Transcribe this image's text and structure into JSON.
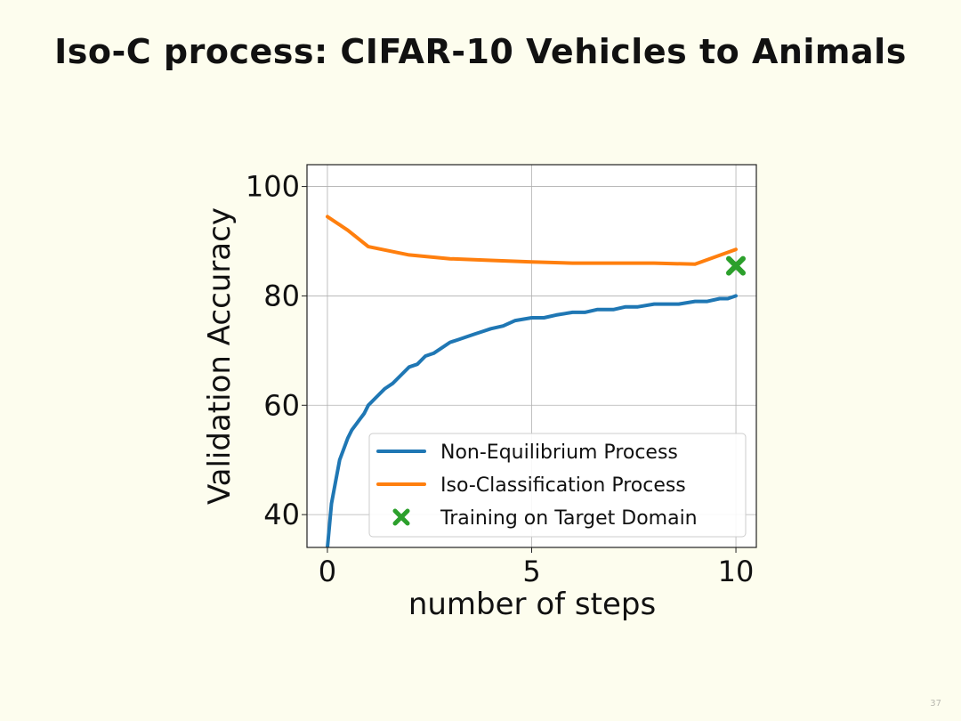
{
  "slide": {
    "title": "Iso-C process: CIFAR-10 Vehicles to Animals",
    "page_number": "37"
  },
  "chart_data": {
    "type": "line",
    "title": "",
    "xlabel": "number of steps",
    "ylabel": "Validation Accuracy",
    "xlim": [
      -0.5,
      10.5
    ],
    "ylim": [
      34,
      104
    ],
    "xticks": [
      0,
      5,
      10
    ],
    "yticks": [
      40,
      60,
      80,
      100
    ],
    "grid": true,
    "legend_position": "lower-right",
    "series": [
      {
        "name": "Non-Equilibrium Process",
        "color": "#1f77b4",
        "x": [
          0,
          0.1,
          0.2,
          0.3,
          0.4,
          0.5,
          0.6,
          0.7,
          0.8,
          0.9,
          1.0,
          1.2,
          1.4,
          1.6,
          1.8,
          2.0,
          2.2,
          2.4,
          2.6,
          2.8,
          3.0,
          3.2,
          3.4,
          3.6,
          3.8,
          4.0,
          4.3,
          4.6,
          5.0,
          5.3,
          5.6,
          6.0,
          6.3,
          6.6,
          7.0,
          7.3,
          7.6,
          8.0,
          8.3,
          8.6,
          9.0,
          9.3,
          9.6,
          9.8,
          10.0
        ],
        "y": [
          34,
          42,
          46,
          50,
          52,
          54,
          55.5,
          56.5,
          57.5,
          58.5,
          60,
          61.5,
          63,
          64,
          65.5,
          67,
          67.5,
          69,
          69.5,
          70.5,
          71.5,
          72,
          72.5,
          73,
          73.5,
          74,
          74.5,
          75.5,
          76,
          76,
          76.5,
          77,
          77,
          77.5,
          77.5,
          78,
          78,
          78.5,
          78.5,
          78.5,
          79,
          79,
          79.5,
          79.5,
          80
        ]
      },
      {
        "name": "Iso-Classification Process",
        "color": "#ff7f0e",
        "x": [
          0,
          0.5,
          1,
          2,
          3,
          4,
          5,
          6,
          7,
          8,
          9,
          10
        ],
        "y": [
          94.5,
          92,
          89,
          87.5,
          86.8,
          86.5,
          86.2,
          86,
          86,
          86,
          85.8,
          88.5
        ]
      }
    ],
    "points": [
      {
        "name": "Training on Target Domain",
        "color": "#2ca02c",
        "x": 10,
        "y": 85.5
      }
    ]
  }
}
